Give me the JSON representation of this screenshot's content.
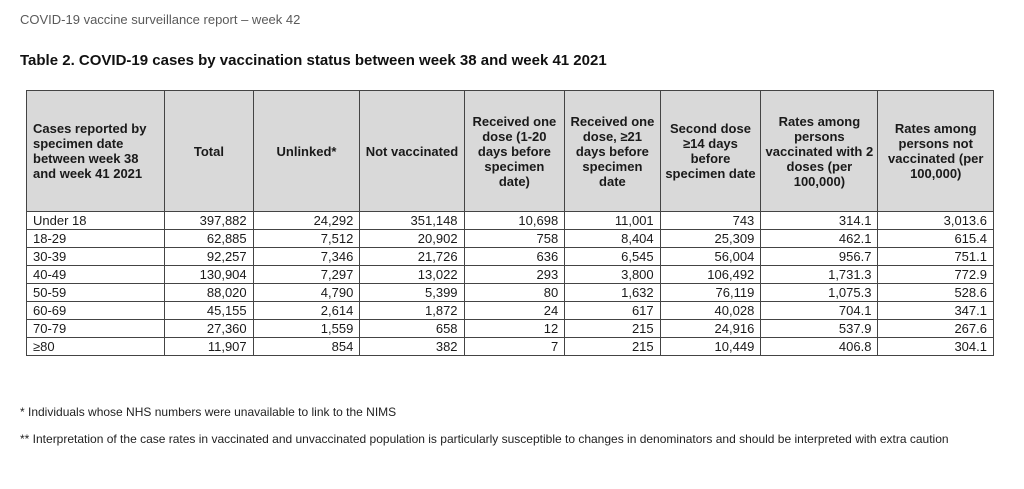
{
  "page_header": "COVID-19 vaccine surveillance report – week 42",
  "table_title": "Table 2. COVID-19 cases by vaccination status between week 38 and week 41 2021",
  "table": {
    "headers": [
      "Cases reported by specimen date between week 38 and week 41 2021",
      "Total",
      "Unlinked*",
      "Not vaccinated",
      "Received one dose (1-20 days before specimen date)",
      "Received one dose, ≥21 days before specimen date",
      "Second dose ≥14 days before specimen date",
      "Rates among persons vaccinated with 2 doses (per 100,000)",
      "Rates among persons not vaccinated (per 100,000)"
    ],
    "rows": [
      [
        "Under 18",
        "397,882",
        "24,292",
        "351,148",
        "10,698",
        "11,001",
        "743",
        "314.1",
        "3,013.6"
      ],
      [
        "18-29",
        "62,885",
        "7,512",
        "20,902",
        "758",
        "8,404",
        "25,309",
        "462.1",
        "615.4"
      ],
      [
        "30-39",
        "92,257",
        "7,346",
        "21,726",
        "636",
        "6,545",
        "56,004",
        "956.7",
        "751.1"
      ],
      [
        "40-49",
        "130,904",
        "7,297",
        "13,022",
        "293",
        "3,800",
        "106,492",
        "1,731.3",
        "772.9"
      ],
      [
        "50-59",
        "88,020",
        "4,790",
        "5,399",
        "80",
        "1,632",
        "76,119",
        "1,075.3",
        "528.6"
      ],
      [
        "60-69",
        "45,155",
        "2,614",
        "1,872",
        "24",
        "617",
        "40,028",
        "704.1",
        "347.1"
      ],
      [
        "70-79",
        "27,360",
        "1,559",
        "658",
        "12",
        "215",
        "24,916",
        "537.9",
        "267.6"
      ],
      [
        "≥80",
        "11,907",
        "854",
        "382",
        "7",
        "215",
        "10,449",
        "406.8",
        "304.1"
      ]
    ]
  },
  "footnotes": [
    "* Individuals whose NHS numbers were unavailable to link to the NIMS",
    "** Interpretation of the case rates in vaccinated and unvaccinated population is particularly susceptible to changes in denominators and should be interpreted with extra caution"
  ]
}
